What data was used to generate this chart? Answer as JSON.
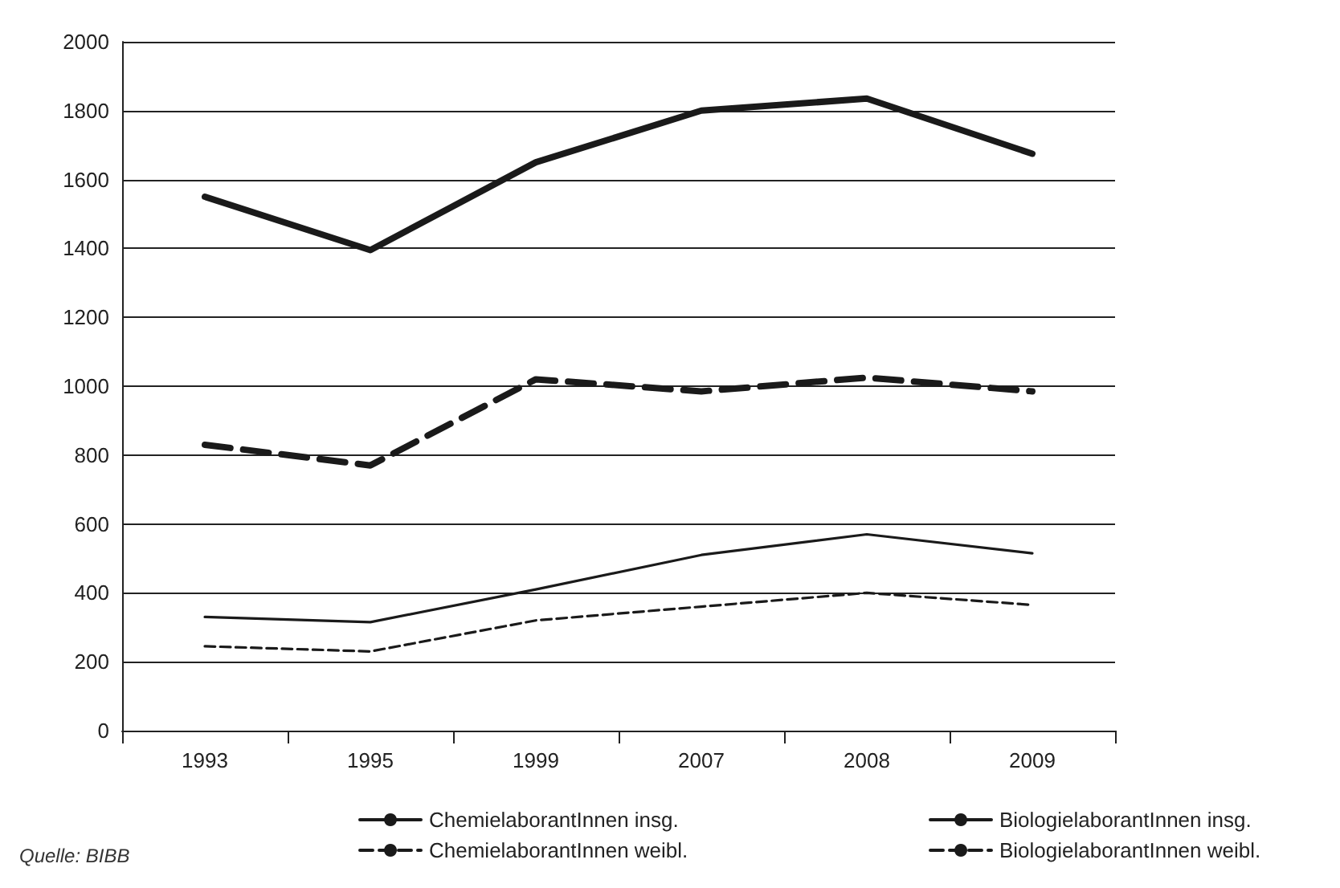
{
  "chart_data": {
    "type": "line",
    "categories": [
      "1993",
      "1995",
      "1999",
      "2007",
      "2008",
      "2009"
    ],
    "series": [
      {
        "name": "ChemielaborantInnen insg.",
        "color": "#1a1a1a",
        "line_style": "solid",
        "values": [
          1550,
          1395,
          1650,
          1800,
          1835,
          1675
        ]
      },
      {
        "name": "ChemielaborantInnen weibl.",
        "color": "#1a1a1a",
        "line_style": "dashed",
        "values": [
          830,
          770,
          1020,
          985,
          1025,
          985
        ]
      },
      {
        "name": "BiologielaborantInnen insg.",
        "color": "#1a1a1a",
        "line_style": "solid",
        "values": [
          330,
          315,
          410,
          510,
          570,
          515
        ]
      },
      {
        "name": "BiologielaborantInnen weibl.",
        "color": "#1a1a1a",
        "line_style": "dashed",
        "values": [
          245,
          230,
          320,
          360,
          400,
          365
        ]
      }
    ],
    "ylim": [
      0,
      2000
    ],
    "yticks": [
      0,
      200,
      400,
      600,
      800,
      1000,
      1200,
      1400,
      1600,
      1800,
      2000
    ],
    "grid": "y",
    "legend": "bottom",
    "marker": "none",
    "annotations": [
      "Quelle: BIBB"
    ]
  }
}
